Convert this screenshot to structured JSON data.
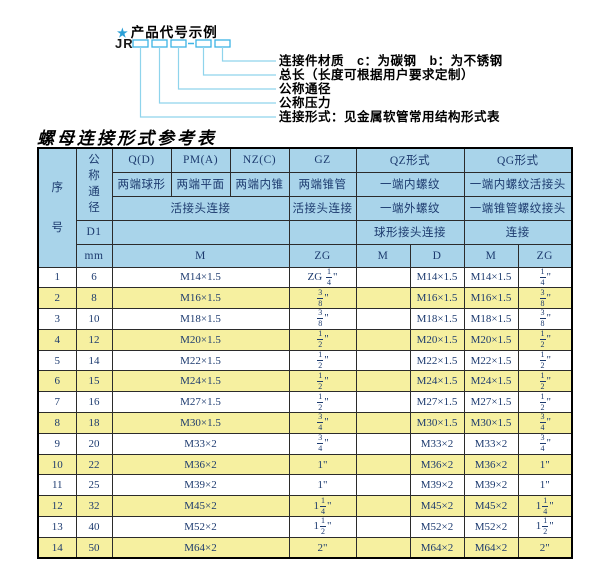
{
  "diagram": {
    "star": "★",
    "title": "产品代号示例",
    "code": "JR",
    "labels": [
      "连接件材质　c：为碳钢　b：为不锈钢",
      "总长（长度可根据用户要求定制）",
      "公称通径",
      "公称压力",
      "连接形式：见金属软管常用结构形式表"
    ]
  },
  "table": {
    "title": "螺母连接形式参考表",
    "header": {
      "seq": "序号",
      "dn": "公称通径",
      "d1": "D1",
      "mm": "mm",
      "col_q": "Q(D)",
      "col_pm": "PM(A)",
      "col_nz": "NZ(C)",
      "col_gz": "GZ",
      "col_qz": "QZ形式",
      "col_qg": "QG形式",
      "q_sub": "两端球形",
      "pm_sub": "两端平面",
      "nz_sub": "两端内锥",
      "gz_sub": "两端锥管",
      "qz_sub1": "一端内螺纹",
      "qg_sub1": "一端内螺纹活接头",
      "union_row": "活接头连接",
      "gz_union": "活接头连接",
      "qz_sub2": "一端外螺纹",
      "qg_sub2": "一端锥管螺纹接头",
      "qz_sub3": "球形接头连接",
      "qg_sub3": "连接",
      "m_span": "M",
      "zg_col": "ZG",
      "qz_m": "M",
      "qz_d": "D",
      "qg_m": "M",
      "qg_zg": "ZG"
    },
    "rows": [
      {
        "seq": "1",
        "dn": "6",
        "m": "M14×1.5",
        "gz": "ZG {1/4}\"",
        "qzm": "",
        "qzd": "M14×1.5",
        "qgm": "M14×1.5",
        "qgzg": "{1/4}\""
      },
      {
        "seq": "2",
        "dn": "8",
        "m": "M16×1.5",
        "gz": "{3/8}\"",
        "qzm": "",
        "qzd": "M16×1.5",
        "qgm": "M16×1.5",
        "qgzg": "{3/8}\""
      },
      {
        "seq": "3",
        "dn": "10",
        "m": "M18×1.5",
        "gz": "{3/8}\"",
        "qzm": "",
        "qzd": "M18×1.5",
        "qgm": "M18×1.5",
        "qgzg": "{3/8}\""
      },
      {
        "seq": "4",
        "dn": "12",
        "m": "M20×1.5",
        "gz": "{1/2}\"",
        "qzm": "",
        "qzd": "M20×1.5",
        "qgm": "M20×1.5",
        "qgzg": "{1/2}\""
      },
      {
        "seq": "5",
        "dn": "14",
        "m": "M22×1.5",
        "gz": "{1/2}\"",
        "qzm": "",
        "qzd": "M22×1.5",
        "qgm": "M22×1.5",
        "qgzg": "{1/2}\""
      },
      {
        "seq": "6",
        "dn": "15",
        "m": "M24×1.5",
        "gz": "{1/2}\"",
        "qzm": "",
        "qzd": "M24×1.5",
        "qgm": "M24×1.5",
        "qgzg": "{1/2}\""
      },
      {
        "seq": "7",
        "dn": "16",
        "m": "M27×1.5",
        "gz": "{1/2}\"",
        "qzm": "",
        "qzd": "M27×1.5",
        "qgm": "M27×1.5",
        "qgzg": "{1/2}\""
      },
      {
        "seq": "8",
        "dn": "18",
        "m": "M30×1.5",
        "gz": "{3/4}\"",
        "qzm": "",
        "qzd": "M30×1.5",
        "qgm": "M30×1.5",
        "qgzg": "{3/4}\""
      },
      {
        "seq": "9",
        "dn": "20",
        "m": "M33×2",
        "gz": "{3/4}\"",
        "qzm": "",
        "qzd": "M33×2",
        "qgm": "M33×2",
        "qgzg": "{3/4}\""
      },
      {
        "seq": "10",
        "dn": "22",
        "m": "M36×2",
        "gz": "1\"",
        "qzm": "",
        "qzd": "M36×2",
        "qgm": "M36×2",
        "qgzg": "1\""
      },
      {
        "seq": "11",
        "dn": "25",
        "m": "M39×2",
        "gz": "1\"",
        "qzm": "",
        "qzd": "M39×2",
        "qgm": "M39×2",
        "qgzg": "1\""
      },
      {
        "seq": "12",
        "dn": "32",
        "m": "M45×2",
        "gz": "1{1/4}\"",
        "qzm": "",
        "qzd": "M45×2",
        "qgm": "M45×2",
        "qgzg": "1{1/4}\""
      },
      {
        "seq": "13",
        "dn": "40",
        "m": "M52×2",
        "gz": "1{1/2}\"",
        "qzm": "",
        "qzd": "M52×2",
        "qgm": "M52×2",
        "qgzg": "1{1/2}\""
      },
      {
        "seq": "14",
        "dn": "50",
        "m": "M64×2",
        "gz": "2\"",
        "qzm": "",
        "qzd": "M64×2",
        "qgm": "M64×2",
        "qgzg": "2\""
      }
    ]
  },
  "colors": {
    "header_blue": "#a9d4ea",
    "row_yellow": "#f6f0a0",
    "table_text": "#1c3a6e",
    "accent_cyan": "#3db4e5",
    "leader_line": "#8fd4ec",
    "star_blue": "#2b9fd6"
  }
}
